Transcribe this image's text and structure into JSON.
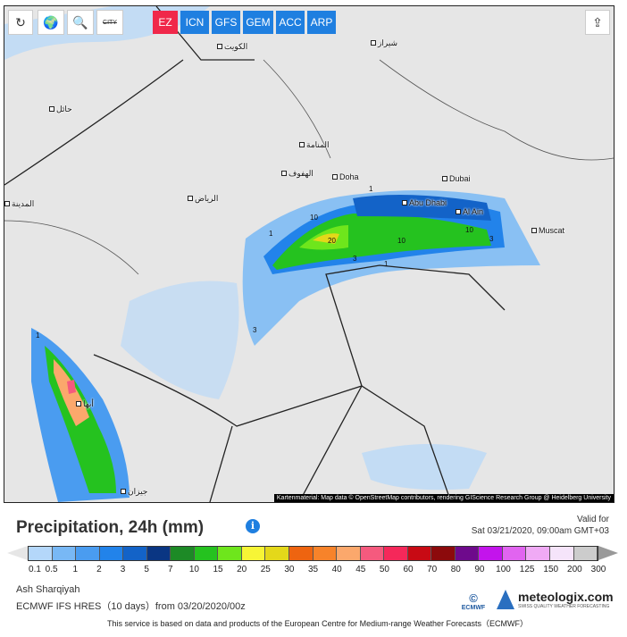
{
  "toolbar": {
    "reload_icon": "reload-icon",
    "globe_icon": "globe-icon",
    "zoom_out_icon": "zoom-out-icon",
    "city_label": "CITY",
    "share_icon": "share-icon"
  },
  "models": [
    {
      "label": "EZ",
      "active": true
    },
    {
      "label": "ICN"
    },
    {
      "label": "GFS"
    },
    {
      "label": "GEM"
    },
    {
      "label": "ACC"
    },
    {
      "label": "ARP"
    }
  ],
  "colors": {
    "active_model": "#f0284a",
    "model": "#1f7fe0"
  },
  "map": {
    "cities": [
      "Doha",
      "Dubai",
      "Abu Dhabi",
      "Al Ain",
      "Muscat",
      "الكويت",
      "شيراز",
      "حائل",
      "المنامة",
      "الهفوف",
      "الرياض",
      "أبها",
      "جيزان",
      "المدينة"
    ],
    "isolines": [
      "10",
      "1",
      "20",
      "3",
      "10",
      "1",
      "10",
      "3",
      "1",
      "3",
      "1"
    ],
    "attribution": "Kartenmaterial: Map data © OpenStreetMap contributors, rendering GIScience Research Group @ Heidelberg University"
  },
  "legend": {
    "title": "Precipitation, 24h (mm)",
    "valid_label": "Valid for",
    "valid_time": "Sat 03/21/2020, 09:00am GMT+03",
    "labels": [
      "0.1",
      "0.5",
      "1",
      "2",
      "3",
      "5",
      "7",
      "10",
      "15",
      "20",
      "25",
      "30",
      "35",
      "40",
      "45",
      "50",
      "60",
      "70",
      "80",
      "90",
      "100",
      "125",
      "150",
      "200",
      "300"
    ],
    "swatches": [
      "#b4d7fa",
      "#78b8f5",
      "#4a9cf0",
      "#2283ea",
      "#1363c8",
      "#0a3683",
      "#1d8a26",
      "#25c21f",
      "#6ee61c",
      "#f7f536",
      "#e4d81a",
      "#ee6410",
      "#f7832a",
      "#fba86c",
      "#f55a7e",
      "#f5285a",
      "#c80a14",
      "#8c0a0c",
      "#6e0a8c",
      "#c314ec",
      "#e164f0",
      "#f0aaf5",
      "#f5e4fa",
      "#cccccc"
    ],
    "under_color": "#e6e6e6",
    "over_color": "#999999"
  },
  "footer": {
    "region": "Ash Sharqiyah",
    "model": "ECMWF IFS HRES（10 days）from 03/20/2020/00z",
    "disclaimer": "This service is based on data and products of the European Centre for Medium-range Weather Forecasts（ECMWF）",
    "ecmwf_logo": "ECMWF",
    "brand": "meteologix.com",
    "brand_tagline": "SWISS QUALITY WEATHER FORECASTING"
  }
}
